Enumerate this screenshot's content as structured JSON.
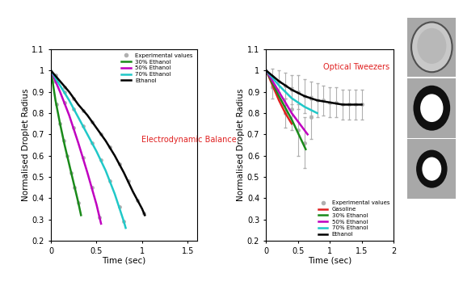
{
  "chart_data": [
    {
      "type": "line",
      "annotations": [
        "Electrodynamic Balance"
      ],
      "x_label": "Time (sec)",
      "y_label": "Normalised Droplet Radius",
      "xlim": [
        0,
        1.6
      ],
      "xticks": [
        0,
        0.5,
        1,
        1.5
      ],
      "ylim": [
        0.2,
        1.1
      ],
      "yticks": [
        0.2,
        0.3,
        0.4,
        0.5,
        0.6,
        0.7,
        0.8,
        0.9,
        1,
        1.1
      ],
      "legend": "upper right",
      "series": [
        {
          "name": "Experimental values",
          "type": "scatter",
          "marker": "o",
          "color": "#b0b0b0",
          "x": [
            0.02,
            0.06,
            0.1,
            0.14,
            0.18,
            0.22,
            0.26,
            0.3,
            0.05,
            0.15,
            0.25,
            0.35,
            0.45,
            0.53,
            0.05,
            0.15,
            0.25,
            0.35,
            0.45,
            0.55,
            0.65,
            0.75,
            0.8,
            0.05,
            0.15,
            0.25,
            0.35,
            0.45,
            0.55,
            0.65,
            0.75,
            0.85,
            0.95,
            1.02
          ],
          "values": [
            0.95,
            0.84,
            0.75,
            0.67,
            0.6,
            0.52,
            0.45,
            0.38,
            0.95,
            0.85,
            0.73,
            0.59,
            0.45,
            0.31,
            0.96,
            0.9,
            0.82,
            0.74,
            0.66,
            0.58,
            0.48,
            0.36,
            0.29,
            0.98,
            0.92,
            0.87,
            0.81,
            0.76,
            0.7,
            0.64,
            0.56,
            0.48,
            0.39,
            0.33
          ]
        },
        {
          "name": "30% Ethanol",
          "type": "line",
          "color": "#1a8a1a",
          "x": [
            0,
            0.05,
            0.1,
            0.15,
            0.2,
            0.25,
            0.3,
            0.33
          ],
          "values": [
            1,
            0.86,
            0.75,
            0.65,
            0.56,
            0.47,
            0.38,
            0.32
          ]
        },
        {
          "name": "50% Ethanol",
          "type": "line",
          "color": "#c000c0",
          "x": [
            0,
            0.1,
            0.2,
            0.3,
            0.4,
            0.5,
            0.55
          ],
          "values": [
            1,
            0.9,
            0.79,
            0.66,
            0.52,
            0.37,
            0.28
          ]
        },
        {
          "name": "70% Ethanol",
          "type": "line",
          "color": "#20c8c8",
          "x": [
            0,
            0.1,
            0.2,
            0.3,
            0.4,
            0.5,
            0.6,
            0.7,
            0.8,
            0.82
          ],
          "values": [
            1,
            0.93,
            0.86,
            0.78,
            0.7,
            0.62,
            0.53,
            0.42,
            0.29,
            0.26
          ]
        },
        {
          "name": "Ethanol",
          "type": "line",
          "color": "#000000",
          "x": [
            0,
            0.1,
            0.2,
            0.3,
            0.4,
            0.5,
            0.6,
            0.7,
            0.8,
            0.9,
            1.0,
            1.03
          ],
          "values": [
            1,
            0.95,
            0.9,
            0.84,
            0.79,
            0.73,
            0.67,
            0.6,
            0.52,
            0.43,
            0.35,
            0.32
          ]
        }
      ]
    },
    {
      "type": "line",
      "annotations": [
        "Optical Tweezers"
      ],
      "x_label": "Time (sec)",
      "y_label": "Normalised Droplet Radius",
      "xlim": [
        0,
        2
      ],
      "xticks": [
        0,
        0.5,
        1,
        1.5,
        2
      ],
      "ylim": [
        0.2,
        1.1
      ],
      "yticks": [
        0.2,
        0.3,
        0.4,
        0.5,
        0.6,
        0.7,
        0.8,
        0.9,
        1,
        1.1
      ],
      "legend": "lower right",
      "series": [
        {
          "name": "Experimental values",
          "type": "scatter",
          "marker": "o",
          "color": "#b0b0b0",
          "x": [
            0.1,
            0.2,
            0.3,
            0.4,
            0.5,
            0.6,
            0.7,
            0.8,
            0.9,
            1.0,
            1.1,
            1.2,
            1.3,
            1.4,
            1.5,
            0.1,
            0.3,
            0.5,
            0.6,
            0.4,
            0.7
          ],
          "values": [
            0.97,
            0.95,
            0.93,
            0.91,
            0.9,
            0.88,
            0.87,
            0.86,
            0.86,
            0.85,
            0.85,
            0.84,
            0.84,
            0.84,
            0.84,
            0.92,
            0.8,
            0.72,
            0.66,
            0.82,
            0.78
          ],
          "errors": [
            0.04,
            0.05,
            0.06,
            0.07,
            0.08,
            0.08,
            0.08,
            0.08,
            0.07,
            0.07,
            0.07,
            0.07,
            0.07,
            0.07,
            0.07,
            0.05,
            0.07,
            0.12,
            0.12,
            0.1,
            0.1
          ]
        },
        {
          "name": "Gasoline",
          "type": "line",
          "color": "#e02020",
          "x": [
            0,
            0.1,
            0.2,
            0.3,
            0.4
          ],
          "values": [
            1,
            0.93,
            0.86,
            0.8,
            0.75
          ]
        },
        {
          "name": "30% Ethanol",
          "type": "line",
          "color": "#1a8a1a",
          "x": [
            0,
            0.2,
            0.4,
            0.62
          ],
          "values": [
            1,
            0.88,
            0.77,
            0.63
          ]
        },
        {
          "name": "50% Ethanol",
          "type": "line",
          "color": "#c000c0",
          "x": [
            0,
            0.2,
            0.4,
            0.6,
            0.65
          ],
          "values": [
            1,
            0.9,
            0.8,
            0.72,
            0.7
          ]
        },
        {
          "name": "70% Ethanol",
          "type": "line",
          "color": "#20c8c8",
          "x": [
            0,
            0.2,
            0.4,
            0.6,
            0.8
          ],
          "values": [
            1,
            0.93,
            0.87,
            0.83,
            0.8
          ]
        },
        {
          "name": "Ethanol",
          "type": "line",
          "color": "#000000",
          "x": [
            0,
            0.2,
            0.4,
            0.6,
            0.8,
            1.0,
            1.2,
            1.5
          ],
          "values": [
            1,
            0.95,
            0.91,
            0.88,
            0.86,
            0.85,
            0.84,
            0.84
          ]
        }
      ]
    }
  ]
}
